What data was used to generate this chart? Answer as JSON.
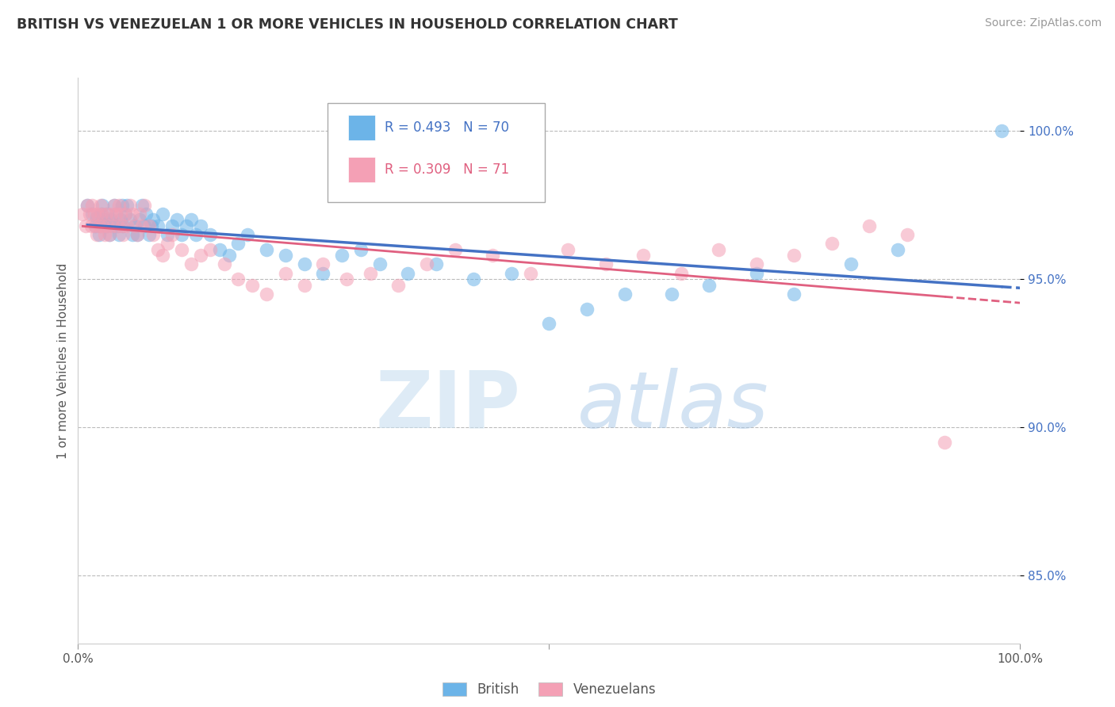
{
  "title": "BRITISH VS VENEZUELAN 1 OR MORE VEHICLES IN HOUSEHOLD CORRELATION CHART",
  "source": "Source: ZipAtlas.com",
  "ylabel": "1 or more Vehicles in Household",
  "ytick_labels": [
    "85.0%",
    "90.0%",
    "95.0%",
    "100.0%"
  ],
  "ytick_values": [
    0.85,
    0.9,
    0.95,
    1.0
  ],
  "xlim": [
    0.0,
    1.0
  ],
  "ylim": [
    0.827,
    1.018
  ],
  "british_color": "#6cb4e8",
  "british_edge_color": "#4472c4",
  "venezuelan_color": "#f4a0b5",
  "venezuelan_edge_color": "#e06080",
  "trendline_british_color": "#4472c4",
  "trendline_venezuelan_color": "#e06080",
  "british_R": 0.493,
  "british_N": 70,
  "venezuelan_R": 0.309,
  "venezuelan_N": 71,
  "legend_british": "British",
  "legend_venezuelan": "Venezuelans",
  "watermark_zip": "ZIP",
  "watermark_atlas": "atlas",
  "british_x": [
    0.01,
    0.015,
    0.018,
    0.02,
    0.022,
    0.024,
    0.025,
    0.026,
    0.028,
    0.03,
    0.031,
    0.033,
    0.035,
    0.037,
    0.038,
    0.04,
    0.042,
    0.043,
    0.045,
    0.047,
    0.048,
    0.05,
    0.052,
    0.055,
    0.058,
    0.06,
    0.063,
    0.065,
    0.068,
    0.07,
    0.072,
    0.075,
    0.078,
    0.08,
    0.085,
    0.09,
    0.095,
    0.1,
    0.105,
    0.11,
    0.115,
    0.12,
    0.125,
    0.13,
    0.14,
    0.15,
    0.16,
    0.17,
    0.18,
    0.2,
    0.22,
    0.24,
    0.26,
    0.28,
    0.3,
    0.32,
    0.35,
    0.38,
    0.42,
    0.46,
    0.5,
    0.54,
    0.58,
    0.63,
    0.67,
    0.72,
    0.76,
    0.82,
    0.87,
    0.98
  ],
  "british_y": [
    0.975,
    0.972,
    0.968,
    0.971,
    0.965,
    0.968,
    0.972,
    0.975,
    0.97,
    0.968,
    0.972,
    0.965,
    0.97,
    0.968,
    0.975,
    0.972,
    0.968,
    0.965,
    0.97,
    0.975,
    0.968,
    0.972,
    0.975,
    0.97,
    0.965,
    0.968,
    0.965,
    0.97,
    0.975,
    0.968,
    0.972,
    0.965,
    0.968,
    0.97,
    0.968,
    0.972,
    0.965,
    0.968,
    0.97,
    0.965,
    0.968,
    0.97,
    0.965,
    0.968,
    0.965,
    0.96,
    0.958,
    0.962,
    0.965,
    0.96,
    0.958,
    0.955,
    0.952,
    0.958,
    0.96,
    0.955,
    0.952,
    0.955,
    0.95,
    0.952,
    0.935,
    0.94,
    0.945,
    0.945,
    0.948,
    0.952,
    0.945,
    0.955,
    0.96,
    1.0
  ],
  "venezuelan_x": [
    0.005,
    0.008,
    0.01,
    0.012,
    0.014,
    0.015,
    0.017,
    0.018,
    0.02,
    0.021,
    0.022,
    0.024,
    0.025,
    0.026,
    0.028,
    0.03,
    0.031,
    0.033,
    0.035,
    0.037,
    0.038,
    0.04,
    0.042,
    0.043,
    0.045,
    0.047,
    0.048,
    0.05,
    0.052,
    0.055,
    0.058,
    0.06,
    0.063,
    0.065,
    0.068,
    0.07,
    0.075,
    0.08,
    0.085,
    0.09,
    0.095,
    0.1,
    0.11,
    0.12,
    0.13,
    0.14,
    0.155,
    0.17,
    0.185,
    0.2,
    0.22,
    0.24,
    0.26,
    0.285,
    0.31,
    0.34,
    0.37,
    0.4,
    0.44,
    0.48,
    0.52,
    0.56,
    0.6,
    0.64,
    0.68,
    0.72,
    0.76,
    0.8,
    0.84,
    0.88,
    0.92
  ],
  "venezuelan_y": [
    0.972,
    0.968,
    0.975,
    0.972,
    0.968,
    0.975,
    0.972,
    0.968,
    0.965,
    0.972,
    0.968,
    0.975,
    0.972,
    0.968,
    0.965,
    0.972,
    0.968,
    0.965,
    0.972,
    0.968,
    0.975,
    0.972,
    0.968,
    0.975,
    0.972,
    0.968,
    0.965,
    0.972,
    0.968,
    0.975,
    0.972,
    0.968,
    0.965,
    0.972,
    0.968,
    0.975,
    0.968,
    0.965,
    0.96,
    0.958,
    0.962,
    0.965,
    0.96,
    0.955,
    0.958,
    0.96,
    0.955,
    0.95,
    0.948,
    0.945,
    0.952,
    0.948,
    0.955,
    0.95,
    0.952,
    0.948,
    0.955,
    0.96,
    0.958,
    0.952,
    0.96,
    0.955,
    0.958,
    0.952,
    0.96,
    0.955,
    0.958,
    0.962,
    0.968,
    0.965,
    0.895
  ]
}
